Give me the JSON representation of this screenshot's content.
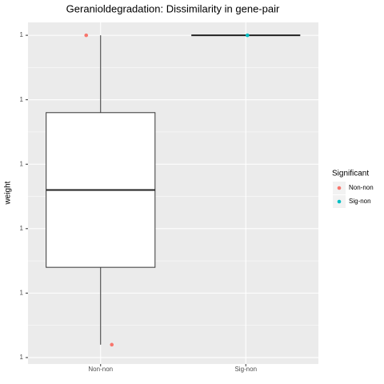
{
  "chart_data": {
    "type": "box",
    "title": "Geranioldegradation: Dissimilarity in gene-pair",
    "y_label": "weight",
    "categories": [
      "Non-non",
      "Sig-non"
    ],
    "boxes": [
      {
        "min": 0.999904,
        "q1": 0.999928,
        "median": 0.999952,
        "q3": 0.999976,
        "max": 1.0
      },
      {
        "min": 1.0,
        "q1": 1.0,
        "median": 1.0,
        "q3": 1.0,
        "max": 1.0
      }
    ],
    "series": [
      {
        "name": "Non-non",
        "color": "#F8766D",
        "values": [
          1.0,
          0.999904
        ]
      },
      {
        "name": "Sig-non",
        "color": "#00BFC4",
        "values": [
          1.0
        ]
      }
    ],
    "legend_title": "Significant",
    "legend": "right",
    "ylim": [
      0.999898,
      1.000004
    ],
    "yticks": [
      {
        "value": 0.9999,
        "label": "1"
      },
      {
        "value": 0.99992,
        "label": "1"
      },
      {
        "value": 0.99994,
        "label": "1"
      },
      {
        "value": 0.99996,
        "label": "1"
      },
      {
        "value": 0.99998,
        "label": "1"
      },
      1
    ],
    "grid": true
  }
}
